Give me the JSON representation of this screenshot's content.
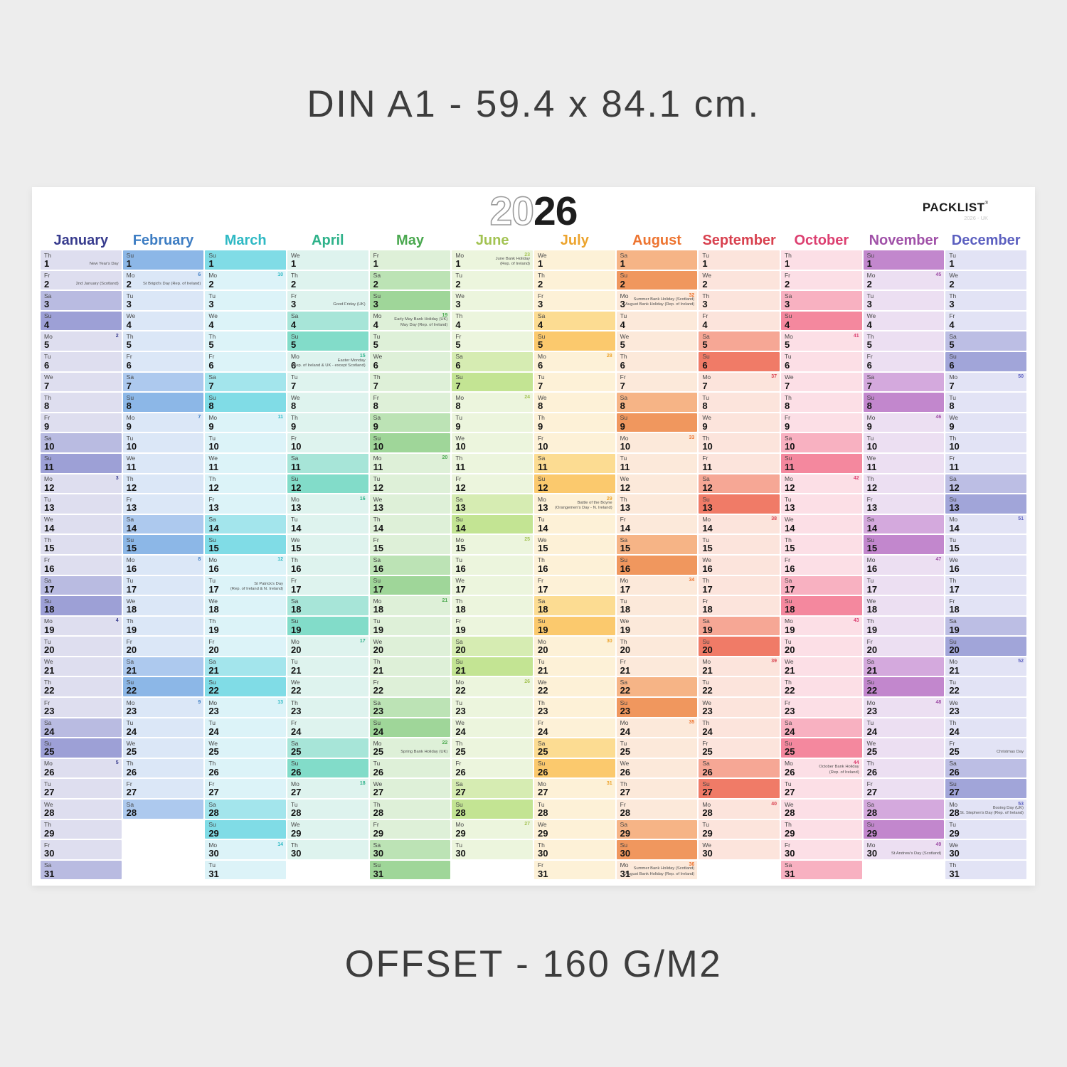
{
  "page": {
    "top_caption": "DIN A1 - 59.4 x 84.1 cm.",
    "bottom_caption": "OFFSET - 160 G/M2"
  },
  "poster": {
    "year_outline": "20",
    "year_solid": "26",
    "brand": "PACKLIST",
    "brand_mark": "®",
    "brand_sub": "2026 - UK"
  },
  "calendar": {
    "weekdays": [
      "Mo",
      "Tu",
      "We",
      "Th",
      "Fr",
      "Sa",
      "Su"
    ],
    "months": [
      {
        "name": "January",
        "accent": "#383c8e",
        "light": "#dedeef",
        "sat": "#b9bbe1",
        "sun": "#9da0d6",
        "start": 3,
        "days": 31,
        "weeks": {
          "5": "2",
          "12": "3",
          "19": "4",
          "26": "5"
        },
        "holidays": {
          "1": [
            "New Year's Day"
          ],
          "2": [
            "2nd January (Scotland)"
          ]
        }
      },
      {
        "name": "February",
        "accent": "#3d7dc3",
        "light": "#dbe7f7",
        "sat": "#adc9ee",
        "sun": "#8cb7e7",
        "start": 6,
        "days": 28,
        "weeks": {
          "2": "6",
          "9": "7",
          "16": "8",
          "23": "9"
        },
        "holidays": {
          "2": [
            "St Brigid's Day (Rep. of Ireland)"
          ]
        }
      },
      {
        "name": "March",
        "accent": "#2fb9c4",
        "light": "#dcf3f8",
        "sat": "#a3e5ec",
        "sun": "#80dce6",
        "start": 6,
        "days": 31,
        "weeks": {
          "2": "10",
          "9": "11",
          "16": "12",
          "23": "13",
          "30": "14"
        },
        "holidays": {
          "17": [
            "St Patrick's Day",
            "(Rep. of Ireland & N. Ireland)"
          ]
        }
      },
      {
        "name": "April",
        "accent": "#2fb28a",
        "light": "#def3ee",
        "sat": "#a7e5d8",
        "sun": "#82dcc9",
        "start": 2,
        "days": 30,
        "weeks": {
          "6": "15",
          "13": "16",
          "20": "17",
          "27": "18"
        },
        "holidays": {
          "3": [
            "Good Friday (UK)"
          ],
          "6": [
            "Easter Monday",
            "(Rep. of Ireland & UK - except Scotland)"
          ]
        }
      },
      {
        "name": "May",
        "accent": "#4aa84f",
        "light": "#def0d8",
        "sat": "#bce3b5",
        "sun": "#9fd699",
        "start": 4,
        "days": 31,
        "weeks": {
          "4": "19",
          "11": "20",
          "18": "21",
          "25": "22"
        },
        "holidays": {
          "4": [
            "Early May Bank Holiday (UK)",
            "May Day (Rep. of Ireland)"
          ],
          "25": [
            "Spring Bank Holiday (UK)"
          ]
        }
      },
      {
        "name": "June",
        "accent": "#a3c353",
        "light": "#ecf5dd",
        "sat": "#d6ecb2",
        "sun": "#c3e493",
        "start": 0,
        "days": 30,
        "weeks": {
          "1": "23",
          "8": "24",
          "15": "25",
          "22": "26",
          "29": "27"
        },
        "holidays": {
          "1": [
            "June Bank Holiday",
            "(Rep. of Ireland)"
          ]
        }
      },
      {
        "name": "July",
        "accent": "#eca42e",
        "light": "#fdf1d7",
        "sat": "#fcdc92",
        "sun": "#fbc96d",
        "start": 2,
        "days": 31,
        "weeks": {
          "6": "28",
          "13": "29",
          "20": "30",
          "27": "31"
        },
        "holidays": {
          "13": [
            "Battle of the Boyne",
            "(Orangemen's Day - N. Ireland)"
          ]
        }
      },
      {
        "name": "August",
        "accent": "#ed7430",
        "light": "#fce9da",
        "sat": "#f6b486",
        "sun": "#f0975e",
        "start": 5,
        "days": 31,
        "weeks": {
          "3": "32",
          "10": "33",
          "17": "34",
          "24": "35",
          "31": "36"
        },
        "holidays": {
          "3": [
            "Summer Bank Holiday (Scotland)",
            "August Bank Holiday (Rep. of Ireland)"
          ],
          "31": [
            "Summer Bank Holiday (Scotland)",
            "August Bank Holiday (Rep. of Ireland)"
          ]
        }
      },
      {
        "name": "September",
        "accent": "#d8414f",
        "light": "#fce4dc",
        "sat": "#f6a795",
        "sun": "#f07b67",
        "start": 1,
        "days": 30,
        "weeks": {
          "7": "37",
          "14": "38",
          "21": "39",
          "28": "40"
        },
        "holidays": {}
      },
      {
        "name": "October",
        "accent": "#dc3f70",
        "light": "#fcdfe6",
        "sat": "#f8b1c1",
        "sun": "#f4889e",
        "start": 3,
        "days": 31,
        "weeks": {
          "5": "41",
          "12": "42",
          "19": "43",
          "26": "44"
        },
        "holidays": {
          "26": [
            "October Bank Holiday",
            "(Rep. of Ireland)"
          ]
        }
      },
      {
        "name": "November",
        "accent": "#a051a8",
        "light": "#ecdff2",
        "sat": "#d4a9dd",
        "sun": "#c287cd",
        "start": 6,
        "days": 30,
        "weeks": {
          "2": "45",
          "9": "46",
          "16": "47",
          "23": "48",
          "30": "49"
        },
        "holidays": {
          "30": [
            "St Andrew's Day (Scotland)"
          ]
        }
      },
      {
        "name": "December",
        "accent": "#5c60c0",
        "light": "#e2e3f5",
        "sat": "#bcbee4",
        "sun": "#a1a5d9",
        "start": 1,
        "days": 31,
        "weeks": {
          "7": "50",
          "14": "51",
          "21": "52",
          "28": "53"
        },
        "holidays": {
          "25": [
            "Christmas Day"
          ],
          "28": [
            "Boxing Day (UK)",
            "St. Stephen's Day (Rep. of Ireland)"
          ]
        }
      }
    ]
  }
}
